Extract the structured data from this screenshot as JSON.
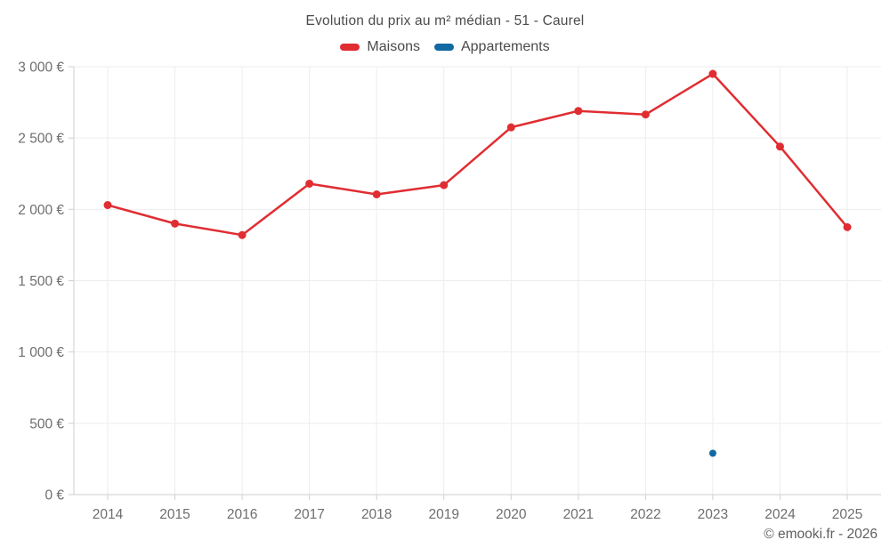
{
  "page": {
    "background": "#ffffff"
  },
  "chart_data": {
    "type": "line",
    "title": "Evolution du prix au m² médian - 51 - Caurel",
    "categories": [
      "2014",
      "2015",
      "2016",
      "2017",
      "2018",
      "2019",
      "2020",
      "2021",
      "2022",
      "2023",
      "2024",
      "2025"
    ],
    "series": [
      {
        "name": "Maisons",
        "slug": "maisons",
        "color": "#e02d32",
        "values": [
          2030,
          1900,
          1820,
          2180,
          2105,
          2170,
          2575,
          2690,
          2665,
          2950,
          2440,
          1875
        ]
      },
      {
        "name": "Appartements",
        "slug": "appartements",
        "color": "#1269a2",
        "values": [
          null,
          null,
          null,
          null,
          null,
          null,
          null,
          null,
          null,
          290,
          null,
          null
        ]
      }
    ],
    "ylim": [
      0,
      3000
    ],
    "ytick_step": 500,
    "ytick_suffix": " €",
    "ytick_labels": [
      "0 €",
      "500 €",
      "1 000 €",
      "1 500 €",
      "2 000 €",
      "2 500 €",
      "3 000 €"
    ],
    "grid": true,
    "legend_position": "top",
    "axis_color": "#cfcfcf",
    "grid_color": "#ededed",
    "tick_label_color": "#6e6e6e",
    "title_color": "#4b4b4b"
  },
  "watermark": {
    "text": "© emooki.fr - 2026"
  }
}
